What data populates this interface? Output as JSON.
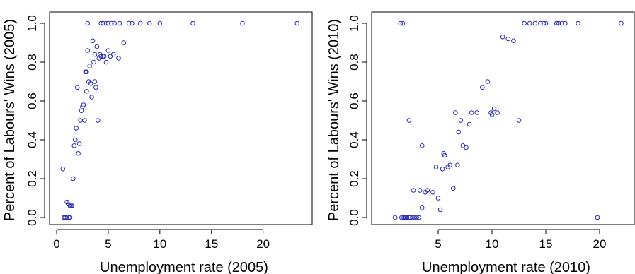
{
  "chart_data": [
    {
      "type": "scatter",
      "xlabel": "Unemployment rate (2005)",
      "ylabel": "Percent of Labours' Wins (2005)",
      "xlim": [
        0,
        24
      ],
      "ylim": [
        0,
        1
      ],
      "xticks": [
        0,
        5,
        10,
        15,
        20
      ],
      "yticks": [
        0.0,
        0.2,
        0.4,
        0.6,
        0.8,
        1.0
      ],
      "ytick_labels": [
        "0.0",
        "0.2",
        "0.4",
        "0.6",
        "0.8",
        "1.0"
      ],
      "grid": false,
      "marker_color": "#2b2bb8",
      "x": [
        0.6,
        0.7,
        0.8,
        0.9,
        1.0,
        1.1,
        1.2,
        1.3,
        1.4,
        1.6,
        1.7,
        1.8,
        1.9,
        2.0,
        2.1,
        2.2,
        2.3,
        2.4,
        2.5,
        2.6,
        2.7,
        2.8,
        2.9,
        3.0,
        3.1,
        3.2,
        3.3,
        3.4,
        3.5,
        3.6,
        3.7,
        3.8,
        3.9,
        4.0,
        4.1,
        4.2,
        4.3,
        4.5,
        4.6,
        4.8,
        5.0,
        5.2,
        5.5,
        6.0,
        6.5,
        3.0,
        4.5,
        4.8,
        5.0,
        5.3,
        5.6,
        6.1,
        7.0,
        7.3,
        8.1,
        9.0,
        10.0,
        13.2,
        18.0,
        23.3,
        1.5,
        1.3,
        0.9,
        2.9,
        3.7,
        4.3
      ],
      "y": [
        0.25,
        0.0,
        0.0,
        0.0,
        0.08,
        0.07,
        0.0,
        0.06,
        0.06,
        0.2,
        0.37,
        0.4,
        0.46,
        0.67,
        0.33,
        0.38,
        0.5,
        0.55,
        0.57,
        0.58,
        0.5,
        0.75,
        0.65,
        0.86,
        0.7,
        0.78,
        0.69,
        0.62,
        0.91,
        0.8,
        0.7,
        0.67,
        0.88,
        0.5,
        0.82,
        0.84,
        0.83,
        0.83,
        0.83,
        0.8,
        0.86,
        0.83,
        0.84,
        0.82,
        0.9,
        1.0,
        1.0,
        1.0,
        1.0,
        1.0,
        1.0,
        1.0,
        1.0,
        1.0,
        1.0,
        1.0,
        1.0,
        1.0,
        1.0,
        1.0,
        0.06,
        0.0,
        0.0,
        0.75,
        0.84,
        1.0
      ]
    },
    {
      "type": "scatter",
      "xlabel": "Unemployment rate (2010)",
      "ylabel": "Percent of Labours' Wins (2010)",
      "xlim": [
        0,
        22.5
      ],
      "ylim": [
        0,
        1
      ],
      "xticks": [
        5,
        10,
        15,
        20
      ],
      "yticks": [
        0.0,
        0.2,
        0.4,
        0.6,
        0.8,
        1.0
      ],
      "ytick_labels": [
        "0.0",
        "0.2",
        "0.4",
        "0.6",
        "0.8",
        "1.0"
      ],
      "grid": false,
      "marker_color": "#2b2bb8",
      "x": [
        1.0,
        1.6,
        1.8,
        1.9,
        2.0,
        2.1,
        2.3,
        2.4,
        2.6,
        2.8,
        3.0,
        3.2,
        2.7,
        3.3,
        3.5,
        3.8,
        4.0,
        4.5,
        4.8,
        5.0,
        5.2,
        5.4,
        5.6,
        5.9,
        6.1,
        6.4,
        6.6,
        6.9,
        7.1,
        7.3,
        7.6,
        7.9,
        8.1,
        8.6,
        9.1,
        9.6,
        9.9,
        10.2,
        10.5,
        11.0,
        11.5,
        12.0,
        12.5,
        13.0,
        13.5,
        14.0,
        14.5,
        14.8,
        15.0,
        16.0,
        16.2,
        16.5,
        16.8,
        18.0,
        19.8,
        22.0,
        2.3,
        3.5,
        6.8,
        1.5,
        1.7,
        5.5,
        10.0
      ],
      "y": [
        0.0,
        0.0,
        0.0,
        0.0,
        0.0,
        0.0,
        0.0,
        0.0,
        0.0,
        0.0,
        0.0,
        0.0,
        0.14,
        0.14,
        0.05,
        0.13,
        0.14,
        0.13,
        0.26,
        0.1,
        0.04,
        0.25,
        0.32,
        0.26,
        0.27,
        0.15,
        0.54,
        0.44,
        0.5,
        0.37,
        0.36,
        0.48,
        0.54,
        0.54,
        0.67,
        0.7,
        0.54,
        0.56,
        0.54,
        0.93,
        0.92,
        0.91,
        0.5,
        1.0,
        1.0,
        1.0,
        1.0,
        1.0,
        1.0,
        1.0,
        1.0,
        1.0,
        1.0,
        1.0,
        0.0,
        1.0,
        0.5,
        0.37,
        0.27,
        1.0,
        1.0,
        0.33,
        0.53
      ]
    }
  ]
}
